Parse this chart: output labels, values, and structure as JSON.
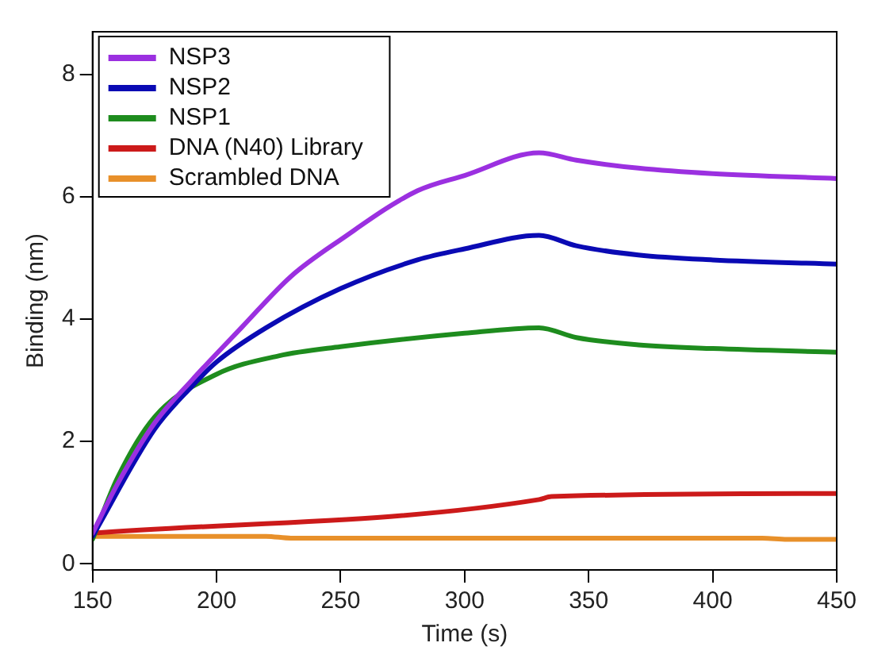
{
  "chart_data": {
    "type": "line",
    "xlabel": "Time (s)",
    "ylabel": "Binding (nm)",
    "xlim": [
      150,
      450
    ],
    "ylim": [
      -0.1,
      8.7
    ],
    "xticks": [
      150,
      200,
      250,
      300,
      350,
      400,
      450
    ],
    "yticks": [
      0,
      2,
      4,
      6,
      8
    ],
    "grid": false,
    "legend": "top left",
    "marker": "none",
    "line_style": "solid",
    "series": [
      {
        "name": "NSP3",
        "color": "#9b30e0",
        "x": [
          150,
          160,
          175,
          190,
          210,
          230,
          250,
          281,
          300,
          330,
          345,
          370,
          400,
          450
        ],
        "values": [
          0.5,
          1.3,
          2.3,
          3.0,
          3.86,
          4.7,
          5.3,
          6.1,
          6.35,
          6.72,
          6.6,
          6.47,
          6.38,
          6.3
        ]
      },
      {
        "name": "NSP2",
        "color": "#0a0ab4",
        "x": [
          150,
          175,
          190,
          200,
          220,
          250,
          281,
          300,
          330,
          345,
          370,
          400,
          450
        ],
        "values": [
          0.45,
          2.2,
          2.9,
          3.3,
          3.86,
          4.5,
          4.97,
          5.15,
          5.37,
          5.2,
          5.05,
          4.97,
          4.9
        ]
      },
      {
        "name": "NSP1",
        "color": "#1e8c1e",
        "x": [
          150,
          160,
          175,
          200,
          225,
          250,
          300,
          330,
          345,
          370,
          400,
          450
        ],
        "values": [
          0.4,
          1.4,
          2.4,
          3.1,
          3.4,
          3.55,
          3.77,
          3.86,
          3.7,
          3.58,
          3.52,
          3.46
        ]
      },
      {
        "name": "DNA (N40) Library",
        "color": "#cc1a1a",
        "x": [
          150,
          330,
          335,
          450
        ],
        "values": [
          0.5,
          1.05,
          1.1,
          1.15
        ]
      },
      {
        "name": "Scrambled DNA",
        "color": "#e8902a",
        "x": [
          150,
          220,
          230,
          420,
          430,
          450
        ],
        "values": [
          0.45,
          0.45,
          0.42,
          0.42,
          0.4,
          0.4
        ]
      }
    ]
  }
}
